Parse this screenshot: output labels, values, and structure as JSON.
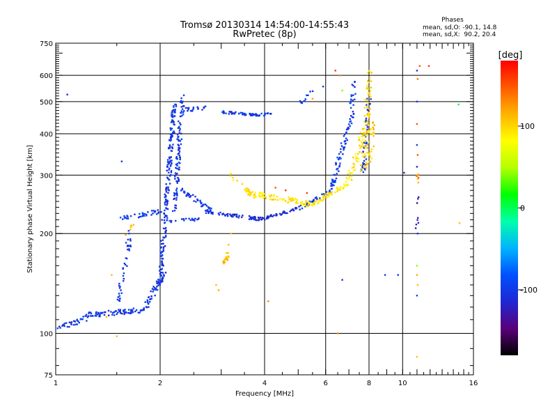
{
  "chart_data": {
    "type": "scatter",
    "title": "Tromsø 20130314 14:54:00-14:55:43",
    "subtitle": "RwPretec (8p)",
    "xlabel": "Frequency [MHz]",
    "ylabel": "Stationary phase Virtual Height [km]",
    "x_scale": "log2",
    "y_scale": "log",
    "xlim": [
      1,
      16
    ],
    "ylim": [
      75,
      750
    ],
    "x_ticks": [
      1,
      2,
      4,
      6,
      8,
      10,
      16
    ],
    "x_tick_labels": [
      "1",
      "2",
      "4",
      "6",
      "8",
      "10",
      "16"
    ],
    "x_gridlines": [
      2,
      4,
      6,
      8,
      10
    ],
    "y_ticks": [
      75,
      100,
      200,
      300,
      400,
      500,
      600,
      750
    ],
    "y_tick_labels": [
      "75",
      "100",
      "200",
      "300",
      "400",
      "500",
      "600",
      "750"
    ],
    "y_gridlines": [
      100,
      200,
      300,
      400,
      500,
      600
    ],
    "grid": true,
    "stats": {
      "heading": "Phases",
      "line_o": "mean, sd,O: -90.1, 14.8",
      "line_x": "mean, sd,X:  90.2, 20.4"
    },
    "colorbar": {
      "label": "[deg]",
      "range": [
        -180,
        180
      ],
      "ticks": [
        100,
        0,
        -100
      ],
      "tick_labels": [
        "100",
        "0",
        "-100"
      ],
      "colormap": [
        "#000000",
        "#5a007a",
        "#1e28d2",
        "#0050ff",
        "#00b4ff",
        "#00ffaa",
        "#00ff00",
        "#b4ff00",
        "#ffff00",
        "#ffb400",
        "#ff5a00",
        "#ff0000"
      ]
    },
    "series": [
      {
        "traces": [
          {
            "f0": 1.0,
            "f1": 1.25,
            "h0": 103,
            "h1": 112,
            "n": 30,
            "phase": -102,
            "spread": 0.025
          },
          {
            "f0": 1.2,
            "f1": 1.8,
            "h0": 113,
            "h1": 118,
            "n": 80,
            "phase": -102,
            "spread": 0.025
          },
          {
            "f0": 1.8,
            "f1": 2.05,
            "h0": 118,
            "h1": 150,
            "n": 50,
            "phase": -102,
            "spread": 0.03
          },
          {
            "f0": 2.0,
            "f1": 2.2,
            "h0": 140,
            "h1": 500,
            "n": 200,
            "phase": -102,
            "spread": 0.03
          },
          {
            "f0": 2.2,
            "f1": 2.32,
            "h0": 230,
            "h1": 520,
            "n": 100,
            "phase": -102,
            "spread": 0.03
          },
          {
            "f0": 2.3,
            "f1": 2.7,
            "h0": 470,
            "h1": 480,
            "n": 20,
            "phase": -102,
            "spread": 0.02
          },
          {
            "f0": 1.5,
            "f1": 1.65,
            "h0": 120,
            "h1": 205,
            "n": 40,
            "phase": -102,
            "spread": 0.03
          },
          {
            "f0": 1.55,
            "f1": 2.05,
            "h0": 222,
            "h1": 235,
            "n": 35,
            "phase": -100,
            "spread": 0.02
          },
          {
            "f0": 2.3,
            "f1": 2.8,
            "h0": 270,
            "h1": 235,
            "n": 45,
            "phase": -100,
            "spread": 0.025
          },
          {
            "f0": 2.0,
            "f1": 2.6,
            "h0": 218,
            "h1": 220,
            "n": 20,
            "phase": -100,
            "spread": 0.015
          },
          {
            "f0": 2.7,
            "f1": 3.9,
            "h0": 232,
            "h1": 221,
            "n": 70,
            "phase": -110,
            "spread": 0.015
          },
          {
            "f0": 3.9,
            "f1": 5.0,
            "h0": 221,
            "h1": 238,
            "n": 45,
            "phase": -110,
            "spread": 0.015
          },
          {
            "f0": 5.0,
            "f1": 6.2,
            "h0": 238,
            "h1": 268,
            "n": 35,
            "phase": -100,
            "spread": 0.015
          },
          {
            "f0": 6.2,
            "f1": 7.2,
            "h0": 270,
            "h1": 470,
            "n": 70,
            "phase": -100,
            "spread": 0.03
          },
          {
            "f0": 7.1,
            "f1": 7.25,
            "h0": 450,
            "h1": 580,
            "n": 20,
            "phase": -100,
            "spread": 0.03
          },
          {
            "f0": 3.0,
            "f1": 3.8,
            "h0": 465,
            "h1": 455,
            "n": 45,
            "phase": -102,
            "spread": 0.012
          },
          {
            "f0": 3.8,
            "f1": 4.2,
            "h0": 455,
            "h1": 460,
            "n": 15,
            "phase": -102,
            "spread": 0.012
          },
          {
            "f0": 5.0,
            "f1": 5.6,
            "h0": 495,
            "h1": 540,
            "n": 12,
            "phase": -102,
            "spread": 0.02
          },
          {
            "f0": 7.7,
            "f1": 8.0,
            "h0": 300,
            "h1": 520,
            "n": 40,
            "phase": -105,
            "spread": 0.03
          },
          {
            "f0": 3.2,
            "f1": 3.8,
            "h0": 300,
            "h1": 252,
            "n": 25,
            "phase": 95,
            "spread": 0.02
          },
          {
            "f0": 3.6,
            "f1": 5.5,
            "h0": 265,
            "h1": 245,
            "n": 90,
            "phase": 95,
            "spread": 0.025
          },
          {
            "f0": 5.5,
            "f1": 7.0,
            "h0": 245,
            "h1": 285,
            "n": 50,
            "phase": 92,
            "spread": 0.02
          },
          {
            "f0": 7.0,
            "f1": 7.8,
            "h0": 285,
            "h1": 420,
            "n": 45,
            "phase": 95,
            "spread": 0.035
          },
          {
            "f0": 7.7,
            "f1": 8.05,
            "h0": 300,
            "h1": 620,
            "n": 70,
            "phase": 100,
            "spread": 0.04
          },
          {
            "f0": 8.0,
            "f1": 8.25,
            "h0": 330,
            "h1": 440,
            "n": 30,
            "phase": 105,
            "spread": 0.04
          },
          {
            "f0": 3.05,
            "f1": 3.15,
            "h0": 162,
            "h1": 175,
            "n": 20,
            "phase": 110,
            "spread": 0.02
          },
          {
            "f0": 1.6,
            "f1": 1.7,
            "h0": 200,
            "h1": 215,
            "n": 6,
            "phase": 110,
            "spread": 0.02
          },
          {
            "f0": 11.0,
            "f1": 11.05,
            "h0": 280,
            "h1": 305,
            "n": 8,
            "phase": 130,
            "spread": 0.02
          },
          {
            "f0": 11.0,
            "f1": 11.05,
            "h0": 210,
            "h1": 260,
            "n": 8,
            "phase": -130,
            "spread": 0.02
          }
        ]
      },
      {
        "points": [
          [
            1.08,
            525,
            -110
          ],
          [
            2.9,
            140,
            110
          ],
          [
            2.95,
            135,
            120
          ],
          [
            3.2,
            200,
            110
          ],
          [
            3.15,
            185,
            110
          ],
          [
            4.3,
            275,
            150
          ],
          [
            4.6,
            270,
            160
          ],
          [
            5.3,
            265,
            160
          ],
          [
            4.1,
            125,
            130
          ],
          [
            5.5,
            510,
            120
          ],
          [
            5.9,
            555,
            -100
          ],
          [
            6.4,
            620,
            160
          ],
          [
            6.6,
            600,
            130
          ],
          [
            6.7,
            540,
            40
          ],
          [
            6.5,
            100,
            130
          ],
          [
            6.7,
            145,
            -110
          ],
          [
            8.9,
            150,
            -100
          ],
          [
            9.7,
            150,
            -110
          ],
          [
            10.1,
            305,
            -110
          ],
          [
            11.2,
            640,
            150
          ],
          [
            11.9,
            640,
            160
          ],
          [
            11.0,
            620,
            -110
          ],
          [
            11.05,
            585,
            140
          ],
          [
            11.0,
            500,
            -100
          ],
          [
            11.0,
            428,
            150
          ],
          [
            11.0,
            370,
            -100
          ],
          [
            11.05,
            345,
            150
          ],
          [
            11.0,
            318,
            -120
          ],
          [
            11.05,
            200,
            -110
          ],
          [
            11.0,
            160,
            40
          ],
          [
            11.0,
            150,
            120
          ],
          [
            11.05,
            140,
            110
          ],
          [
            11.0,
            85,
            110
          ],
          [
            11.0,
            130,
            -100
          ],
          [
            14.5,
            490,
            0
          ],
          [
            14.6,
            215,
            110
          ],
          [
            1.45,
            150,
            110
          ],
          [
            1.4,
            112,
            110
          ],
          [
            1.5,
            98,
            110
          ],
          [
            1.55,
            330,
            -100
          ]
        ]
      }
    ]
  }
}
